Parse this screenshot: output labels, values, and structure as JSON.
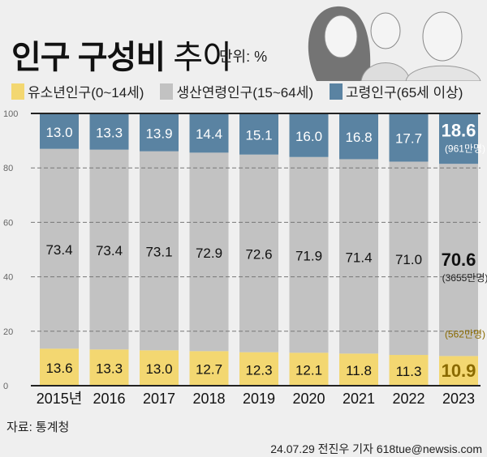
{
  "title": {
    "main": "인구 구성비",
    "light": "추이",
    "unit": "단위: %"
  },
  "source": "자료: 통계청",
  "credit": "24.07.29 전진우 기자 618tue@newsis.com",
  "colors": {
    "youth": "#f3d771",
    "working": "#c2c2c2",
    "elderly": "#5a83a2",
    "background": "#efefef"
  },
  "chart_data": {
    "type": "bar",
    "stacked": true,
    "ylim": [
      0,
      100
    ],
    "yticks": [
      0,
      20,
      40,
      60,
      80,
      100
    ],
    "grid": true,
    "categories": [
      "2015년",
      "2016",
      "2017",
      "2018",
      "2019",
      "2020",
      "2021",
      "2022",
      "2023"
    ],
    "legend_position": "top",
    "series": [
      {
        "name": "유소년인구(0~14세)",
        "values": [
          13.6,
          13.3,
          13.0,
          12.7,
          12.3,
          12.1,
          11.8,
          11.3,
          10.9
        ]
      },
      {
        "name": "생산연령인구(15~64세)",
        "values": [
          73.4,
          73.4,
          73.1,
          72.9,
          72.6,
          71.9,
          71.4,
          71.0,
          70.6
        ]
      },
      {
        "name": "고령인구(65세 이상)",
        "values": [
          13.0,
          13.3,
          13.9,
          14.4,
          15.1,
          16.0,
          16.8,
          17.7,
          18.6
        ]
      }
    ],
    "annotations": {
      "youth_2023": "(562만명)",
      "working_2023": "(3655만명)",
      "elderly_2023": "(961만명)"
    }
  }
}
